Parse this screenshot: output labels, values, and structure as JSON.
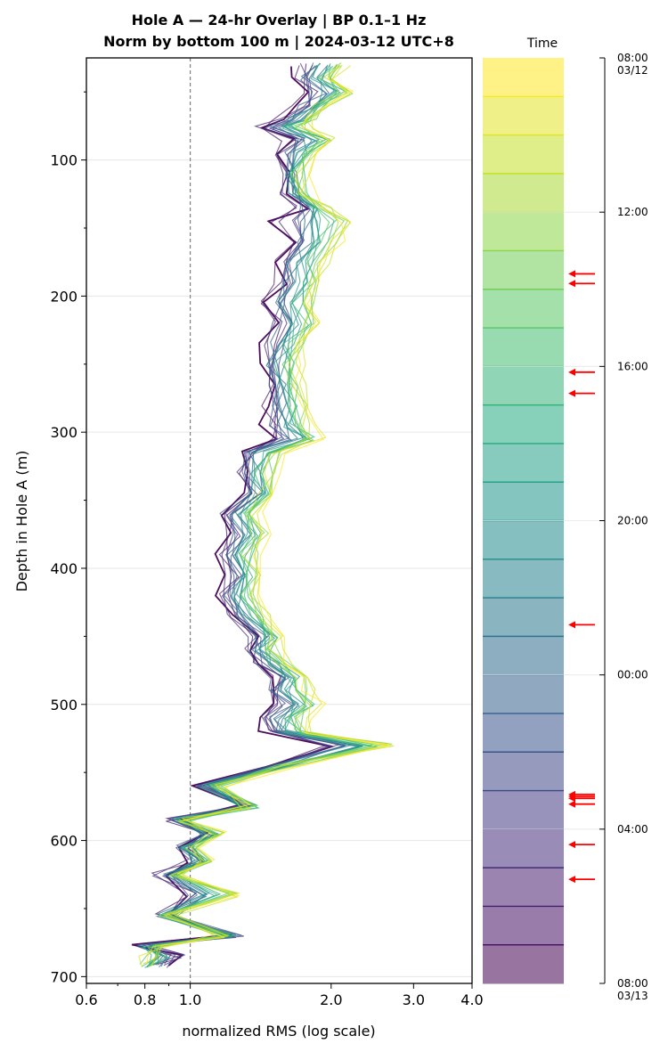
{
  "chart_data": {
    "type": "line",
    "title": "Hole A — 24-hr Overlay  |  BP 0.1–1 Hz",
    "subtitle": "Norm by bottom 100 m  |  2024-03-12 UTC+8",
    "xlabel": "normalized RMS  (log scale)",
    "ylabel": "Depth in Hole A (m)",
    "xscale": "log",
    "xlim": [
      0.6,
      4.0
    ],
    "ylim": [
      705,
      25
    ],
    "x_ticks": [
      "0.6",
      "0.8",
      "1.0",
      "2.0",
      "3.0",
      "4.0"
    ],
    "y_ticks": [
      "100",
      "200",
      "300",
      "400",
      "500",
      "600",
      "700"
    ],
    "reference_line_x": 1.0,
    "grid": "horizontal",
    "profile": {
      "depth": [
        30,
        40,
        50,
        60,
        70,
        76,
        85,
        95,
        110,
        125,
        135,
        145,
        160,
        175,
        190,
        205,
        220,
        235,
        250,
        265,
        280,
        295,
        305,
        315,
        330,
        345,
        360,
        375,
        390,
        405,
        420,
        435,
        450,
        460,
        470,
        480,
        490,
        500,
        510,
        520,
        530,
        545,
        560,
        575,
        585,
        595,
        605,
        615,
        625,
        640,
        655,
        670,
        678,
        685,
        692
      ],
      "early_rms": [
        1.72,
        1.68,
        1.75,
        1.7,
        1.55,
        1.4,
        1.62,
        1.55,
        1.6,
        1.58,
        1.72,
        1.52,
        1.62,
        1.5,
        1.55,
        1.45,
        1.5,
        1.45,
        1.42,
        1.46,
        1.44,
        1.46,
        1.52,
        1.3,
        1.28,
        1.32,
        1.15,
        1.22,
        1.14,
        1.2,
        1.15,
        1.22,
        1.35,
        1.3,
        1.38,
        1.5,
        1.45,
        1.48,
        1.4,
        1.42,
        1.95,
        1.5,
        1.05,
        1.32,
        0.92,
        1.08,
        0.95,
        1.02,
        0.86,
        0.95,
        0.88,
        1.28,
        0.78,
        0.95,
        0.88
      ],
      "late_rms": [
        2.15,
        2.05,
        2.25,
        1.95,
        1.85,
        1.8,
        2.05,
        1.9,
        1.75,
        1.8,
        1.95,
        2.2,
        2.05,
        1.95,
        1.9,
        1.85,
        1.88,
        1.75,
        1.7,
        1.72,
        1.78,
        1.82,
        1.92,
        1.55,
        1.5,
        1.48,
        1.4,
        1.45,
        1.38,
        1.42,
        1.38,
        1.45,
        1.58,
        1.55,
        1.62,
        1.75,
        1.8,
        1.9,
        1.78,
        1.8,
        2.7,
        1.62,
        1.15,
        1.35,
        0.98,
        1.15,
        1.02,
        1.08,
        0.95,
        1.3,
        0.9,
        1.15,
        0.85,
        0.8,
        0.78
      ]
    },
    "series_count": 24,
    "time_axis": {
      "title": "Time",
      "labels": [
        "08:00",
        "12:00",
        "16:00",
        "20:00",
        "00:00",
        "04:00",
        "08:00"
      ],
      "date_labels": [
        "03/12",
        "",
        "",
        "",
        "",
        "",
        "03/13"
      ],
      "hours": [
        0,
        4,
        8,
        12,
        16,
        20,
        24
      ]
    },
    "event_markers_hours": [
      5.6,
      5.85,
      8.15,
      8.7,
      14.7,
      19.1,
      19.15,
      19.2,
      19.35,
      20.4,
      21.3
    ],
    "marker_color": "#ff0000",
    "colormap": "viridis"
  }
}
